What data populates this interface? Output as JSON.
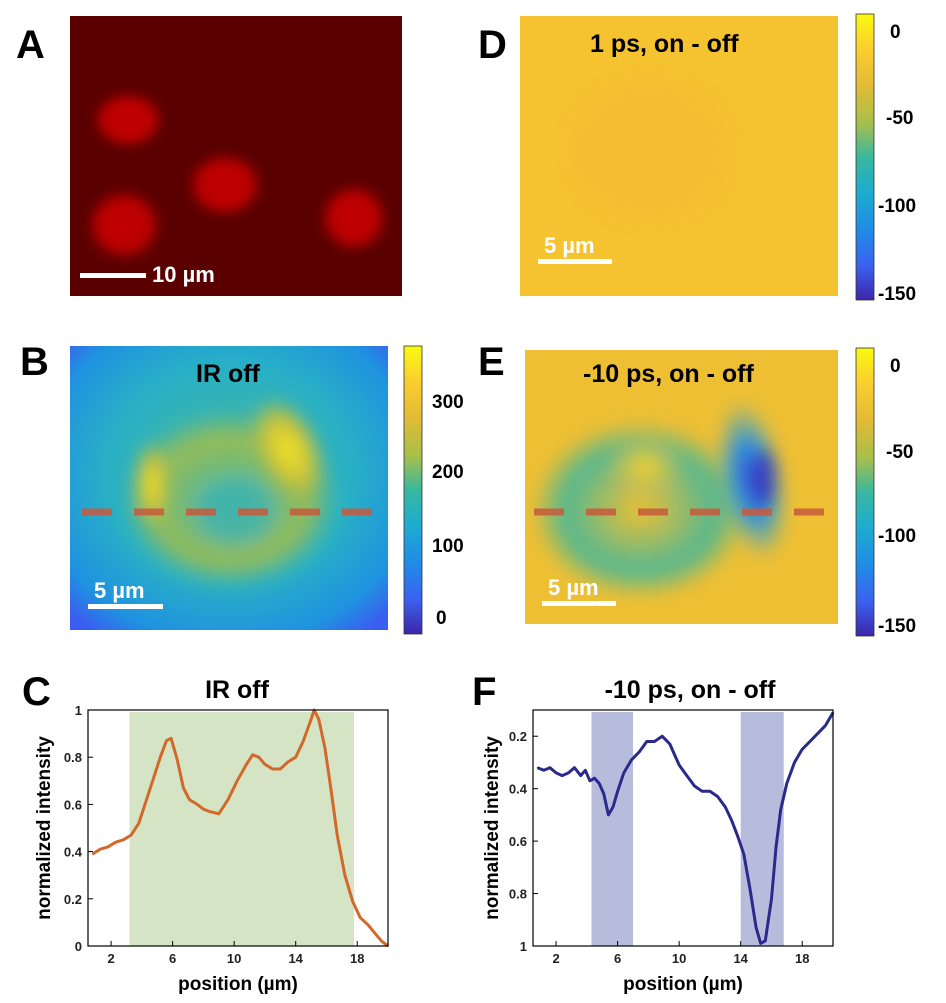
{
  "panels": {
    "A": {
      "label": "A",
      "scalebar": "10 µm"
    },
    "B": {
      "label": "B",
      "title": "IR off",
      "scalebar": "5 µm"
    },
    "C": {
      "label": "C"
    },
    "D": {
      "label": "D",
      "title": "1 ps, on - off",
      "scalebar": "5 µm"
    },
    "E": {
      "label": "E",
      "title": "-10 ps, on - off",
      "scalebar": "5 µm"
    },
    "F": {
      "label": "F"
    }
  },
  "colorbars": {
    "B": {
      "ticks": [
        "300",
        "200",
        "100",
        "0"
      ]
    },
    "D": {
      "ticks": [
        "0",
        "-50",
        "-100",
        "-150"
      ]
    },
    "E": {
      "ticks": [
        "0",
        "-50",
        "-100",
        "-150"
      ]
    }
  },
  "colors": {
    "fluorescence": "#7a0000",
    "profile_c": "#d2692a",
    "profile_f": "#2a2a8c",
    "shade_c": "#d4e4c4",
    "shade_f": "#b8bcdc",
    "dash": "#c85a3c"
  },
  "chart_data": [
    {
      "type": "line",
      "title": "IR off",
      "xlabel": "position (µm)",
      "ylabel": "normalized intensity",
      "xlim": [
        0.5,
        20
      ],
      "ylim": [
        0,
        1
      ],
      "xticks": [
        "2",
        "6",
        "10",
        "14",
        "18"
      ],
      "yticks": [
        "0",
        "0.2",
        "0.4",
        "0.6",
        "0.8",
        "1"
      ],
      "shaded_x": [
        [
          3.2,
          17.8
        ]
      ],
      "series": [
        {
          "x": [
            0.8,
            1.3,
            1.8,
            2.3,
            2.8,
            3.3,
            3.8,
            4.3,
            4.8,
            5.2,
            5.6,
            5.9,
            6.3,
            6.7,
            7.1,
            7.6,
            8.0,
            8.4,
            9.0,
            9.6,
            10.2,
            10.8,
            11.2,
            11.6,
            12.0,
            12.5,
            13.0,
            13.5,
            14.0,
            14.5,
            15.0,
            15.2,
            15.5,
            15.9,
            16.3,
            16.7,
            17.2,
            17.7,
            18.2,
            18.7,
            19.2,
            19.6,
            20.0
          ],
          "values": [
            0.39,
            0.41,
            0.42,
            0.44,
            0.45,
            0.47,
            0.52,
            0.62,
            0.72,
            0.8,
            0.87,
            0.88,
            0.79,
            0.67,
            0.62,
            0.6,
            0.58,
            0.57,
            0.56,
            0.62,
            0.7,
            0.77,
            0.81,
            0.8,
            0.77,
            0.75,
            0.75,
            0.78,
            0.8,
            0.87,
            0.96,
            1.0,
            0.96,
            0.84,
            0.66,
            0.47,
            0.3,
            0.19,
            0.12,
            0.09,
            0.05,
            0.02,
            0.0
          ]
        }
      ]
    },
    {
      "type": "line",
      "title": "-10 ps, on - off",
      "xlabel": "position (µm)",
      "ylabel": "normalized intensity",
      "xlim": [
        0.5,
        20
      ],
      "ylim": [
        0.1,
        1
      ],
      "y_inverted": true,
      "xticks": [
        "2",
        "6",
        "10",
        "14",
        "18"
      ],
      "yticks": [
        "0.2",
        "0.4",
        "0.6",
        "0.8",
        "1"
      ],
      "shaded_x": [
        [
          4.3,
          7.0
        ],
        [
          14.0,
          16.8
        ]
      ],
      "series": [
        {
          "x": [
            0.8,
            1.2,
            1.6,
            2.0,
            2.4,
            2.8,
            3.2,
            3.6,
            3.9,
            4.2,
            4.5,
            4.8,
            5.1,
            5.4,
            5.7,
            6.0,
            6.4,
            6.9,
            7.4,
            7.9,
            8.4,
            8.9,
            9.4,
            9.7,
            10.0,
            10.5,
            11.0,
            11.5,
            12.0,
            12.5,
            13.0,
            13.4,
            13.8,
            14.2,
            14.6,
            15.0,
            15.3,
            15.6,
            16.0,
            16.3,
            16.6,
            17.0,
            17.5,
            18.0,
            18.5,
            19.0,
            19.5,
            20.0
          ],
          "values": [
            0.32,
            0.33,
            0.32,
            0.34,
            0.35,
            0.34,
            0.32,
            0.35,
            0.33,
            0.37,
            0.36,
            0.38,
            0.42,
            0.5,
            0.47,
            0.41,
            0.34,
            0.29,
            0.26,
            0.22,
            0.22,
            0.2,
            0.23,
            0.27,
            0.31,
            0.35,
            0.39,
            0.41,
            0.41,
            0.43,
            0.47,
            0.52,
            0.58,
            0.65,
            0.78,
            0.93,
            0.99,
            0.98,
            0.82,
            0.62,
            0.48,
            0.38,
            0.3,
            0.25,
            0.22,
            0.19,
            0.16,
            0.11
          ]
        }
      ]
    }
  ]
}
